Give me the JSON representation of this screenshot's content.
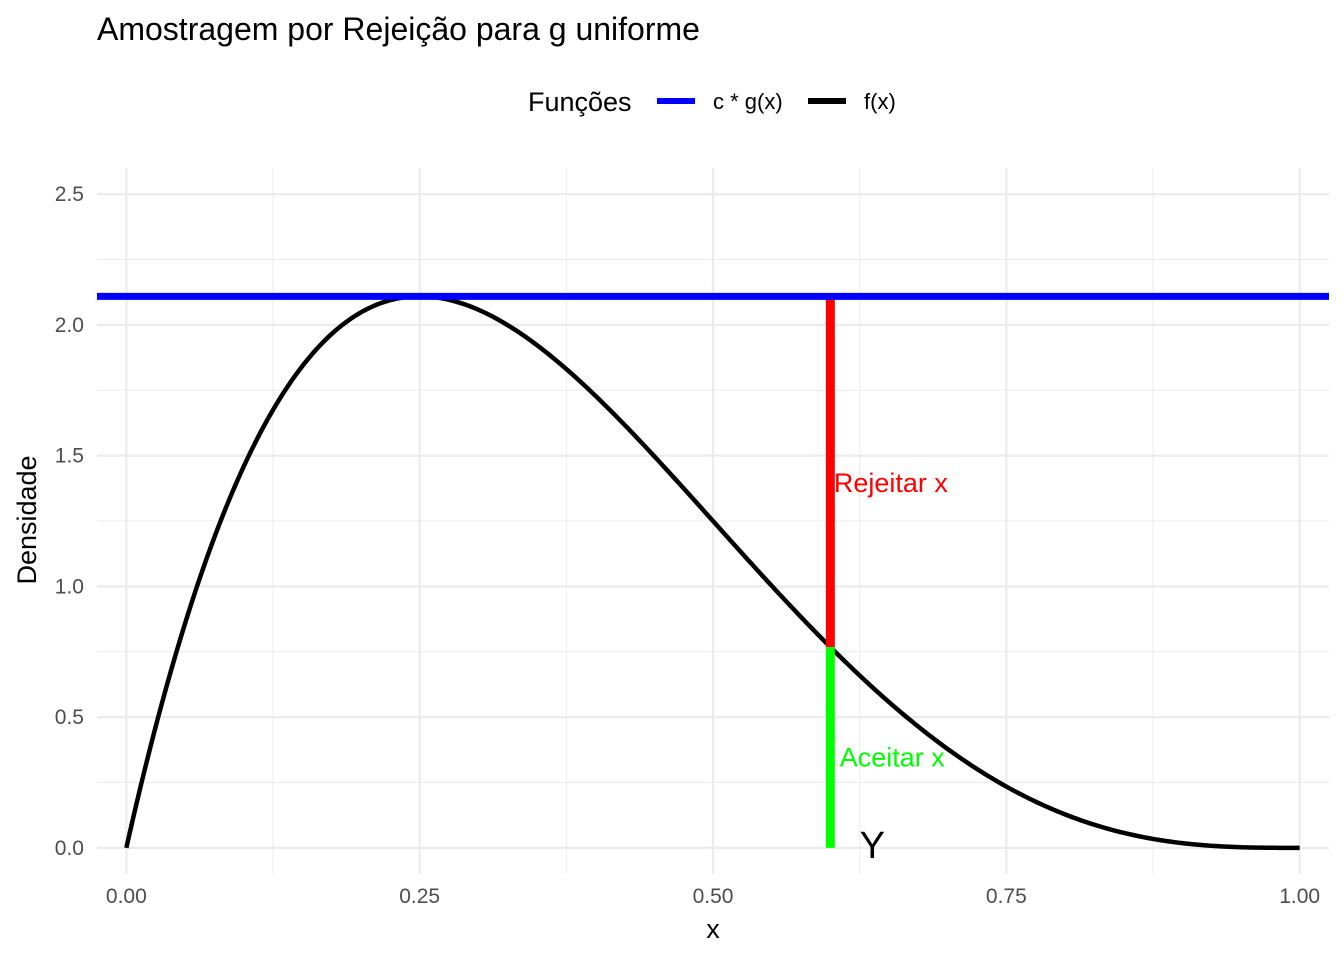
{
  "chart_data": {
    "type": "line",
    "title": "Amostragem por Rejeição para g uniforme",
    "xlabel": "x",
    "ylabel": "Densidade",
    "xlim": [
      -0.025,
      1.025
    ],
    "ylim": [
      -0.1,
      2.6
    ],
    "x_ticks": [
      "0.00",
      "0.25",
      "0.50",
      "0.75",
      "1.00"
    ],
    "x_tick_values": [
      0,
      0.25,
      0.5,
      0.75,
      1.0
    ],
    "y_ticks": [
      "0.0",
      "0.5",
      "1.0",
      "1.5",
      "2.0",
      "2.5"
    ],
    "y_tick_values": [
      0,
      0.5,
      1.0,
      1.5,
      2.0,
      2.5
    ],
    "grid": true,
    "legend": {
      "title": "Funções",
      "position": "top",
      "items": [
        {
          "label": "c * g(x)",
          "color": "#0000ff"
        },
        {
          "label": "f(x)",
          "color": "#000000"
        }
      ]
    },
    "series": [
      {
        "name": "c * g(x)",
        "color": "#0000ff",
        "type": "hline",
        "y": 2.109
      },
      {
        "name": "f(x)",
        "color": "#000000",
        "type": "function",
        "formula": "20 * x * (1 - x)^3",
        "x_range": [
          0,
          1
        ]
      }
    ],
    "segments": [
      {
        "x": 0.6,
        "y_start": 0.768,
        "y_end": 2.109,
        "color": "#ff0000"
      },
      {
        "x": 0.6,
        "y_start": 0,
        "y_end": 0.768,
        "color": "#00ff00"
      }
    ],
    "annotations": [
      {
        "text": "Rejeitar x",
        "x": 0.603,
        "y": 1.4,
        "color": "#ff0000"
      },
      {
        "text": "Aceitar x",
        "x": 0.608,
        "y": 0.35,
        "color": "#00ff00"
      },
      {
        "text": "Y",
        "x": 0.625,
        "y": 0.0,
        "color": "#000000"
      }
    ]
  }
}
